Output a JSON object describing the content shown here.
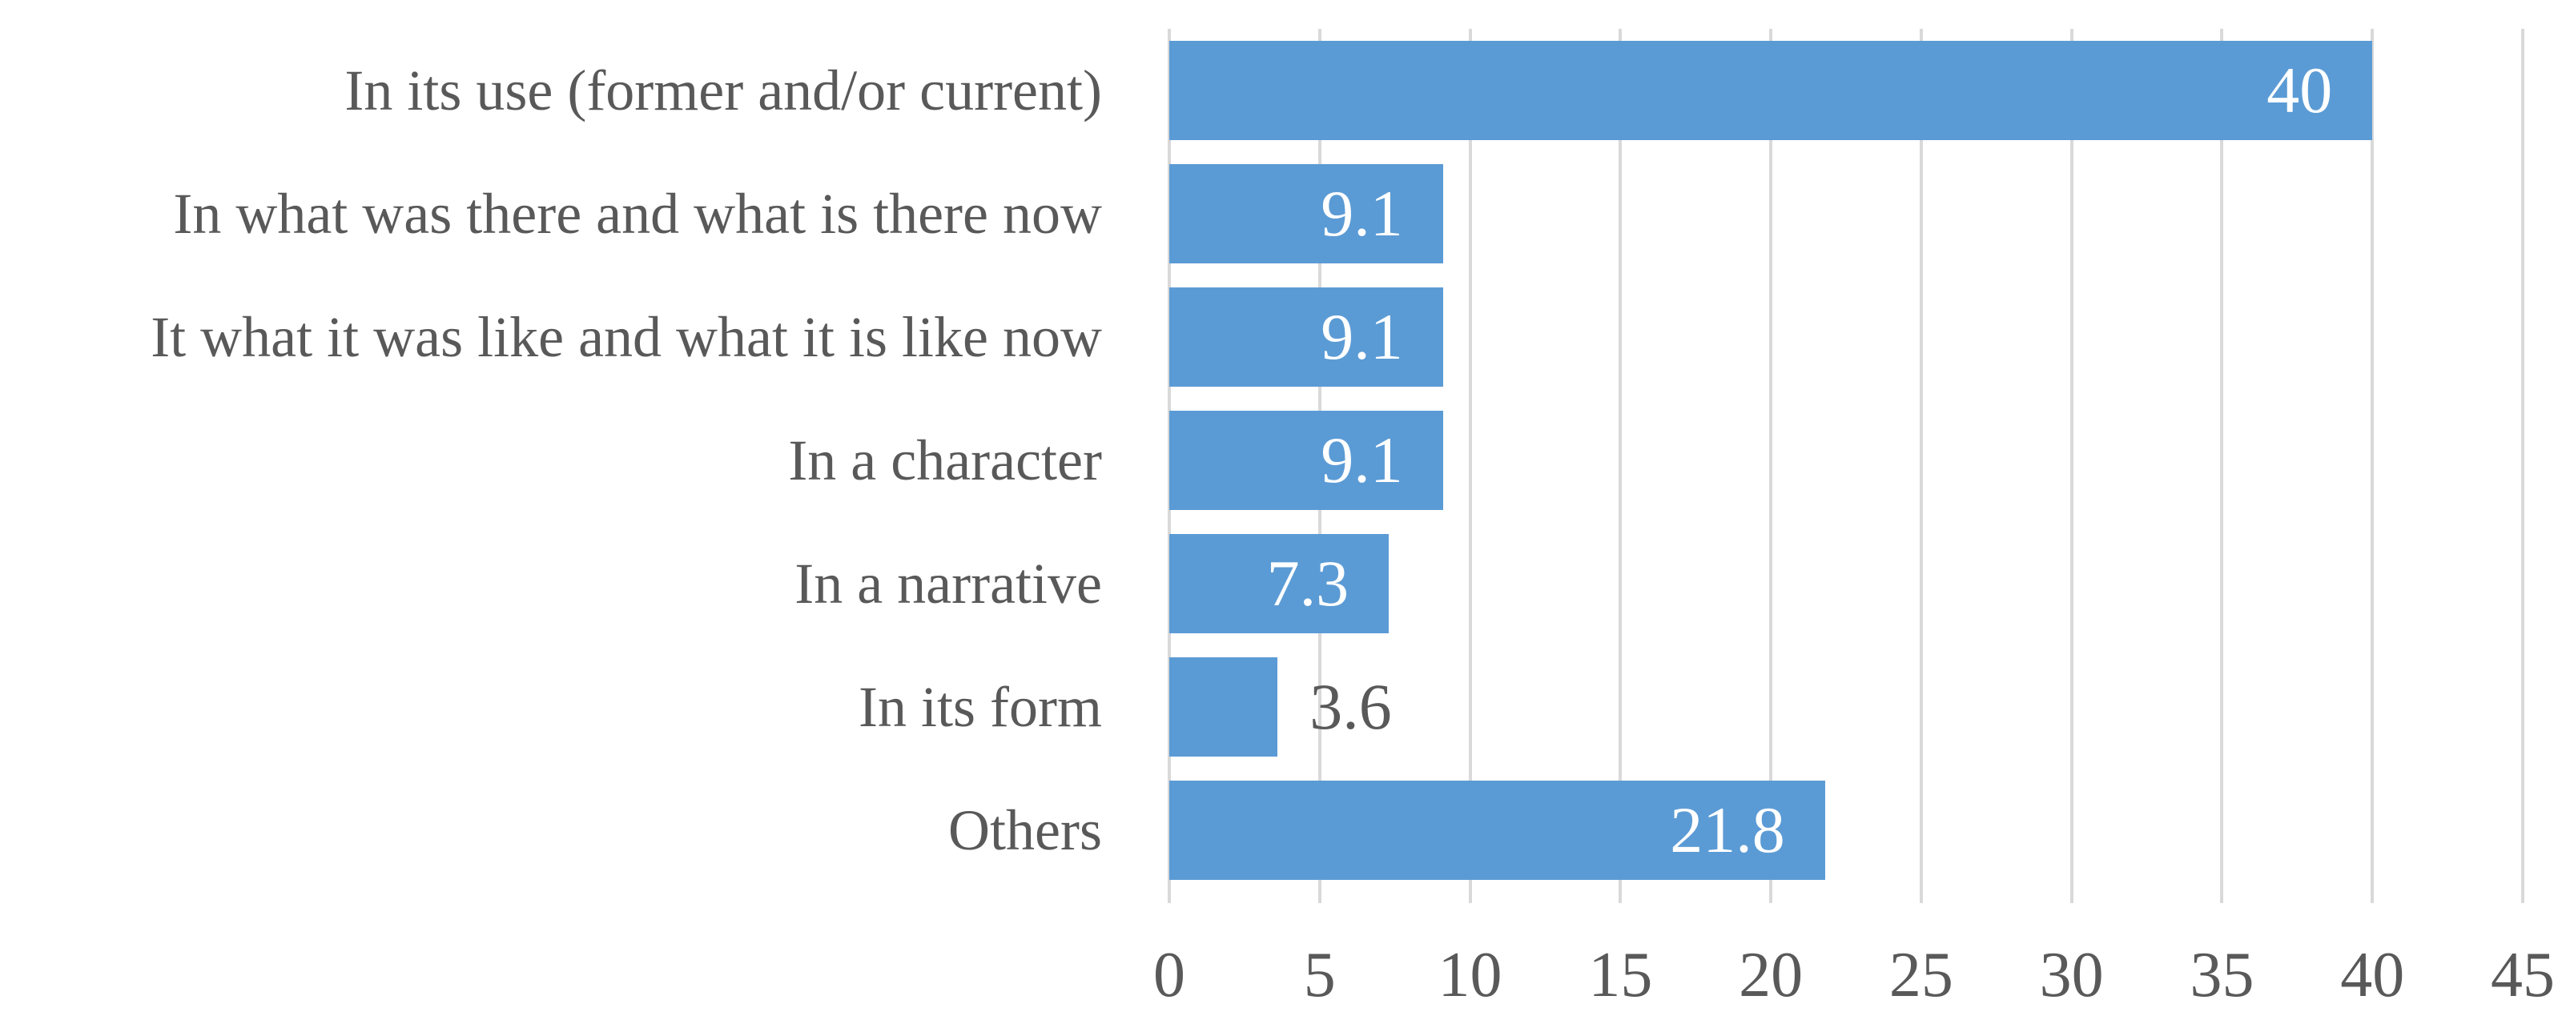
{
  "chart_data": {
    "type": "bar",
    "orientation": "horizontal",
    "title": "",
    "xlabel": "",
    "ylabel": "",
    "categories": [
      "In its use (former and/or current)",
      "In what was there and what is there now",
      "It what it was like and what it is like now",
      "In a character",
      "In a narrative",
      "In its form",
      "Others"
    ],
    "values": [
      40,
      9.1,
      9.1,
      9.1,
      7.3,
      3.6,
      21.8
    ],
    "value_labels": [
      "40",
      "9.1",
      "9.1",
      "9.1",
      "7.3",
      "3.6",
      "21.8"
    ],
    "value_label_placement": [
      "inside",
      "inside",
      "inside",
      "inside",
      "inside",
      "outside",
      "inside"
    ],
    "xlim": [
      0,
      45
    ],
    "x_ticks": [
      "0",
      "5",
      "10",
      "15",
      "20",
      "25",
      "30",
      "35",
      "40",
      "45"
    ],
    "grid": true,
    "legend": false,
    "colors": {
      "bar": "#5B9BD5",
      "gridline": "#D9D9D9",
      "axis_text": "#595959",
      "value_label_inside": "#FFFFFF",
      "value_label_outside": "#595959",
      "background": "#FFFFFF"
    }
  }
}
